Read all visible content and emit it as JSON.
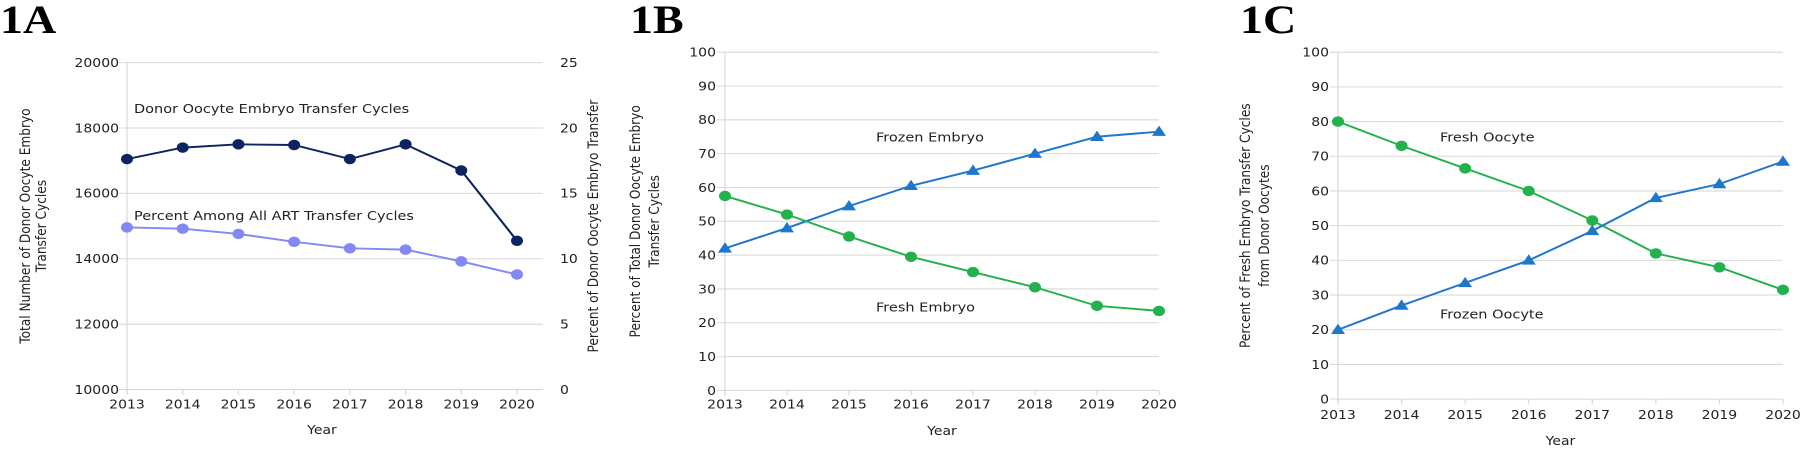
{
  "chart_data": [
    {
      "id": "1A",
      "panel_label": "1A",
      "type": "line",
      "categories": [
        "2013",
        "2014",
        "2015",
        "2016",
        "2017",
        "2018",
        "2019",
        "2020"
      ],
      "xlabel": "Year",
      "ylabel": "Total Number of Donor Oocyte Embryo Transfer Cycles",
      "ylabel_lines": [
        "Total Number of Donor Oocyte Embryo",
        "Transfer Cycles"
      ],
      "ylim": [
        10000,
        20000
      ],
      "yticks": [
        10000,
        12000,
        14000,
        16000,
        18000,
        20000
      ],
      "y2label": "Percent of Donor Oocyte Embryo Transfer",
      "y2label_lines": [
        "Percent of Donor Oocyte Embryo Transfer"
      ],
      "y2lim": [
        0,
        25
      ],
      "y2ticks": [
        0,
        5,
        10,
        15,
        20,
        25
      ],
      "grid": true,
      "series": [
        {
          "name": "Donor Oocyte Embryo Transfer Cycles",
          "axis": "left",
          "color": "#0d2460",
          "marker": "circle",
          "values": [
            17050,
            17400,
            17500,
            17480,
            17050,
            17500,
            16700,
            14550
          ],
          "annotation": "Donor Oocyte Embryo Transfer Cycles"
        },
        {
          "name": "Percent Among All ART Transfer Cycles",
          "axis": "right",
          "color": "#8288f5",
          "marker": "circle",
          "values": [
            12.4,
            12.3,
            11.9,
            11.3,
            10.8,
            10.7,
            9.8,
            8.8
          ],
          "annotation": "Percent Among All ART Transfer Cycles"
        }
      ]
    },
    {
      "id": "1B",
      "panel_label": "1B",
      "type": "line",
      "categories": [
        "2013",
        "2014",
        "2015",
        "2016",
        "2017",
        "2018",
        "2019",
        "2020"
      ],
      "xlabel": "Year",
      "ylabel": "Percent of Total Donor Oocyte Embryo Transfer Cycles",
      "ylabel_lines": [
        "Percent of Total Donor Oocyte Embryo",
        "Transfer Cycles"
      ],
      "ylim": [
        0,
        100
      ],
      "yticks": [
        0,
        10,
        20,
        30,
        40,
        50,
        60,
        70,
        80,
        90,
        100
      ],
      "grid": true,
      "series": [
        {
          "name": "Frozen Embryo",
          "color": "#1f77c9",
          "marker": "triangle",
          "values": [
            42,
            48,
            54.5,
            60.5,
            65,
            70,
            75,
            76.5
          ],
          "annotation": "Frozen Embryo"
        },
        {
          "name": "Fresh Embryo",
          "color": "#22b14c",
          "marker": "circle",
          "values": [
            57.5,
            52,
            45.5,
            39.5,
            35,
            30.5,
            25,
            23.5
          ],
          "annotation": "Fresh Embryo"
        }
      ]
    },
    {
      "id": "1C",
      "panel_label": "1C",
      "type": "line",
      "categories": [
        "2013",
        "2014",
        "2015",
        "2016",
        "2017",
        "2018",
        "2019",
        "2020"
      ],
      "xlabel": "Year",
      "ylabel": "Percent of Fresh Embryo Transfer Cycles from Donor Oocytes",
      "ylabel_lines": [
        "Percent of  Fresh Embryo Transfer Cycles",
        "from Donor Oocytes"
      ],
      "ylim": [
        0,
        100
      ],
      "yticks": [
        0,
        10,
        20,
        30,
        40,
        50,
        60,
        70,
        80,
        90,
        100
      ],
      "grid": true,
      "series": [
        {
          "name": "Fresh Oocyte",
          "color": "#22b14c",
          "marker": "circle",
          "values": [
            80,
            73,
            66.5,
            60,
            51.5,
            42,
            38,
            31.5
          ],
          "annotation": "Fresh Oocyte"
        },
        {
          "name": "Frozen Oocyte",
          "color": "#1f77c9",
          "marker": "triangle",
          "values": [
            20,
            27,
            33.5,
            40,
            48.5,
            58,
            62,
            68.5
          ],
          "annotation": "Frozen Oocyte"
        }
      ]
    }
  ]
}
